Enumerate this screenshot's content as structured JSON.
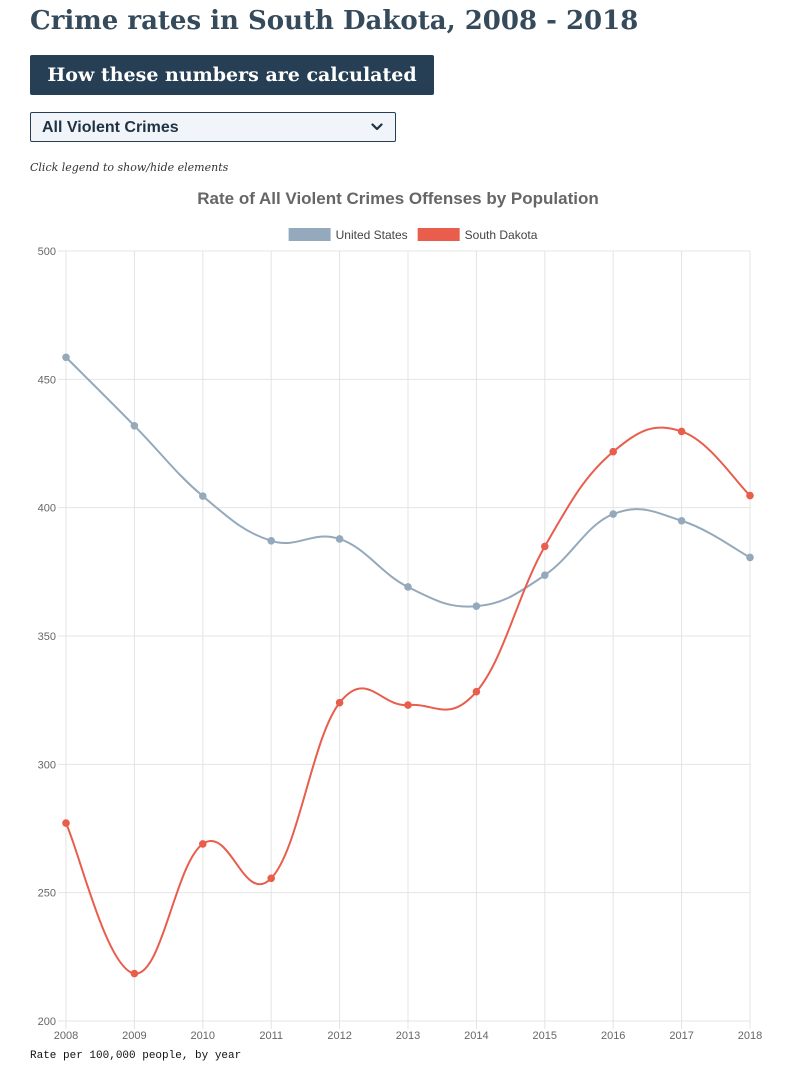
{
  "page": {
    "title": "Crime rates in South Dakota, 2008 - 2018",
    "calc_button_label": "How these numbers are calculated",
    "crime_select_value": "All Violent Crimes",
    "legend_hint": "Click legend to show/hide elements",
    "footnote": "Rate per 100,000 people, by year",
    "chevron_icon": "chevron-down-icon"
  },
  "colors": {
    "title": "#354b5c",
    "button_bg": "#273f54",
    "united_states": "#94a9bc",
    "south_dakota": "#e95d4c",
    "grid": "#e4e4e4"
  },
  "chart_data": {
    "type": "line",
    "title": "Rate of All Violent Crimes Offenses by Population",
    "xlabel": "",
    "ylabel": "",
    "categories": [
      "2008",
      "2009",
      "2010",
      "2011",
      "2012",
      "2013",
      "2014",
      "2015",
      "2016",
      "2017",
      "2018"
    ],
    "ylim": [
      200,
      500
    ],
    "yticks": [
      200,
      250,
      300,
      350,
      400,
      450,
      500
    ],
    "grid": true,
    "legend_position": "top",
    "series": [
      {
        "name": "United States",
        "color": "#94a9bc",
        "values": [
          458.6,
          431.9,
          404.5,
          387.1,
          387.8,
          369.1,
          361.6,
          373.7,
          397.5,
          394.9,
          380.6
        ]
      },
      {
        "name": "South Dakota",
        "color": "#e95d4c",
        "values": [
          277.1,
          218.5,
          269.0,
          255.6,
          324.0,
          323.1,
          328.3,
          384.9,
          421.8,
          429.7,
          404.7
        ]
      }
    ]
  }
}
